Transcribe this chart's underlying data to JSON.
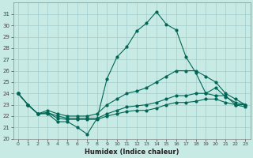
{
  "xlabel": "Humidex (Indice chaleur)",
  "xlim": [
    -0.5,
    23.5
  ],
  "ylim": [
    20,
    32
  ],
  "yticks": [
    20,
    21,
    22,
    23,
    24,
    25,
    26,
    27,
    28,
    29,
    30,
    31
  ],
  "xticks": [
    0,
    1,
    2,
    3,
    4,
    5,
    6,
    7,
    8,
    9,
    10,
    11,
    12,
    13,
    14,
    15,
    16,
    17,
    18,
    19,
    20,
    21,
    22,
    23
  ],
  "bg_color": "#c8eae4",
  "grid_color": "#a0cccc",
  "line_color": "#006655",
  "series": {
    "main": [
      24,
      23,
      22.2,
      22.2,
      21.5,
      21.5,
      21.0,
      20.4,
      21.8,
      25.3,
      27.2,
      28.1,
      29.5,
      30.2,
      31.2,
      30.1,
      29.6,
      27.2,
      25.8,
      24.0,
      23.8,
      23.8,
      23.0,
      23.0
    ],
    "line2": [
      24,
      23,
      22.2,
      22.5,
      22.2,
      22.0,
      22.0,
      22.0,
      22.2,
      23.0,
      23.5,
      24.0,
      24.2,
      24.5,
      25.0,
      25.5,
      26.0,
      26.0,
      26.0,
      25.5,
      25.0,
      24.0,
      23.5,
      23.0
    ],
    "line3": [
      24,
      23,
      22.2,
      22.3,
      22.0,
      21.8,
      21.8,
      21.8,
      21.8,
      22.2,
      22.5,
      22.8,
      22.9,
      23.0,
      23.2,
      23.5,
      23.8,
      23.8,
      24.0,
      24.0,
      24.5,
      23.7,
      23.2,
      23.0
    ],
    "line4": [
      24,
      23,
      22.2,
      22.3,
      21.8,
      21.7,
      21.7,
      21.7,
      21.7,
      22.0,
      22.2,
      22.4,
      22.5,
      22.5,
      22.7,
      23.0,
      23.2,
      23.2,
      23.3,
      23.5,
      23.5,
      23.2,
      23.0,
      22.8
    ]
  }
}
